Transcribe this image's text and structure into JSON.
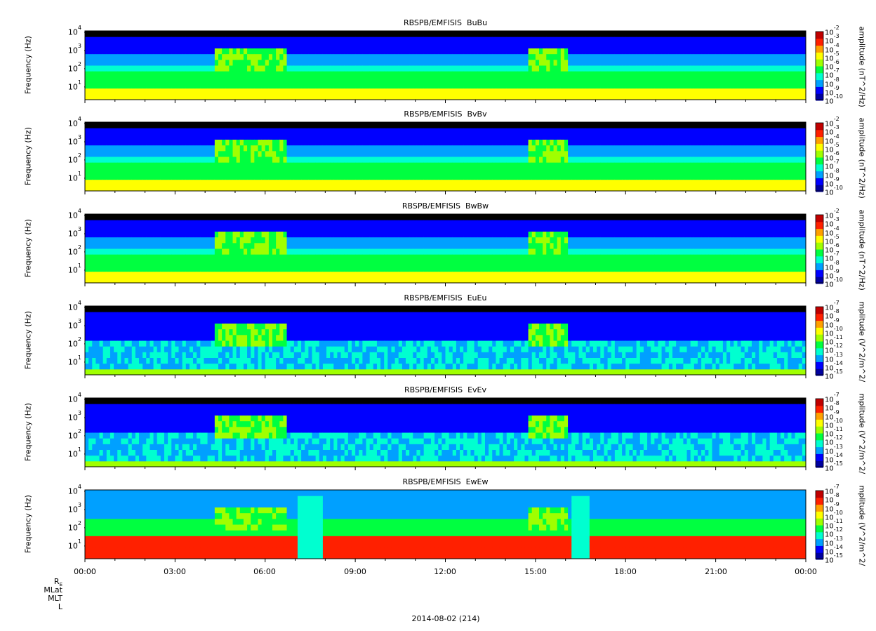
{
  "figure": {
    "date_label": "2014-08-02 (214)",
    "ephemeris_labels": [
      "R_E",
      "MLat",
      "MLT",
      "L"
    ],
    "x_tick_labels": [
      "00:00",
      "03:00",
      "06:00",
      "09:00",
      "12:00",
      "15:00",
      "18:00",
      "21:00",
      "00:00"
    ]
  },
  "colors": {
    "background": "#ffffff",
    "fill_sky": "#000000",
    "colormap": [
      "#0000a0",
      "#0000ff",
      "#00a0ff",
      "#00ffd0",
      "#00ff40",
      "#a0ff00",
      "#ffff00",
      "#ffa000",
      "#ff2000",
      "#c00000"
    ]
  },
  "chart_data": [
    {
      "type": "heatmap",
      "title": "RBSPB/EMFISIS  BuBu",
      "ylabel": "Frequency (Hz)",
      "colorbar_label": "amplitude (nT^2/Hz)",
      "y_scale": "log",
      "ylim": [
        2,
        12000
      ],
      "y_ticks": [
        {
          "base": "10",
          "exp": "1"
        },
        {
          "base": "10",
          "exp": "2"
        },
        {
          "base": "10",
          "exp": "3"
        },
        {
          "base": "10",
          "exp": "4"
        }
      ],
      "colorbar_ticks": [
        "-2",
        "-3",
        "-4",
        "-5",
        "-6",
        "-7",
        "-8",
        "-9",
        "-10"
      ],
      "xlim": [
        "00:00",
        "24:00"
      ]
    },
    {
      "type": "heatmap",
      "title": "RBSPB/EMFISIS  BvBv",
      "ylabel": "Frequency (Hz)",
      "colorbar_label": "amplitude (nT^2/Hz)",
      "y_scale": "log",
      "ylim": [
        2,
        12000
      ],
      "y_ticks": [
        {
          "base": "10",
          "exp": "1"
        },
        {
          "base": "10",
          "exp": "2"
        },
        {
          "base": "10",
          "exp": "3"
        },
        {
          "base": "10",
          "exp": "4"
        }
      ],
      "colorbar_ticks": [
        "-2",
        "-3",
        "-4",
        "-5",
        "-6",
        "-7",
        "-8",
        "-9",
        "-10"
      ],
      "xlim": [
        "00:00",
        "24:00"
      ]
    },
    {
      "type": "heatmap",
      "title": "RBSPB/EMFISIS  BwBw",
      "ylabel": "Frequency (Hz)",
      "colorbar_label": "amplitude (nT^2/Hz)",
      "y_scale": "log",
      "ylim": [
        2,
        12000
      ],
      "y_ticks": [
        {
          "base": "10",
          "exp": "1"
        },
        {
          "base": "10",
          "exp": "2"
        },
        {
          "base": "10",
          "exp": "3"
        },
        {
          "base": "10",
          "exp": "4"
        }
      ],
      "colorbar_ticks": [
        "-2",
        "-3",
        "-4",
        "-5",
        "-6",
        "-7",
        "-8",
        "-9",
        "-10"
      ],
      "xlim": [
        "00:00",
        "24:00"
      ]
    },
    {
      "type": "heatmap",
      "title": "RBSPB/EMFISIS  EuEu",
      "ylabel": "Frequency (Hz)",
      "colorbar_label": "mplitude (V^2/m^2/",
      "y_scale": "log",
      "ylim": [
        2,
        12000
      ],
      "y_ticks": [
        {
          "base": "10",
          "exp": "1"
        },
        {
          "base": "10",
          "exp": "2"
        },
        {
          "base": "10",
          "exp": "3"
        },
        {
          "base": "10",
          "exp": "4"
        }
      ],
      "colorbar_ticks": [
        "-7",
        "-8",
        "-9",
        "-10",
        "-11",
        "-12",
        "-13",
        "-14",
        "-15"
      ],
      "xlim": [
        "00:00",
        "24:00"
      ]
    },
    {
      "type": "heatmap",
      "title": "RBSPB/EMFISIS  EvEv",
      "ylabel": "Frequency (Hz)",
      "colorbar_label": "mplitude (V^2/m^2/",
      "y_scale": "log",
      "ylim": [
        2,
        12000
      ],
      "y_ticks": [
        {
          "base": "10",
          "exp": "1"
        },
        {
          "base": "10",
          "exp": "2"
        },
        {
          "base": "10",
          "exp": "3"
        },
        {
          "base": "10",
          "exp": "4"
        }
      ],
      "colorbar_ticks": [
        "-7",
        "-8",
        "-9",
        "-10",
        "-11",
        "-12",
        "-13",
        "-14",
        "-15"
      ],
      "xlim": [
        "00:00",
        "24:00"
      ]
    },
    {
      "type": "heatmap",
      "title": "RBSPB/EMFISIS  EwEw",
      "ylabel": "Frequency (Hz)",
      "colorbar_label": "mplitude (V^2/m^2/",
      "y_scale": "log",
      "ylim": [
        2,
        12000
      ],
      "y_ticks": [
        {
          "base": "10",
          "exp": "1"
        },
        {
          "base": "10",
          "exp": "2"
        },
        {
          "base": "10",
          "exp": "3"
        },
        {
          "base": "10",
          "exp": "4"
        }
      ],
      "colorbar_ticks": [
        "-7",
        "-8",
        "-9",
        "-10",
        "-11",
        "-12",
        "-13",
        "-14",
        "-15"
      ],
      "xlim": [
        "00:00",
        "24:00"
      ]
    }
  ]
}
